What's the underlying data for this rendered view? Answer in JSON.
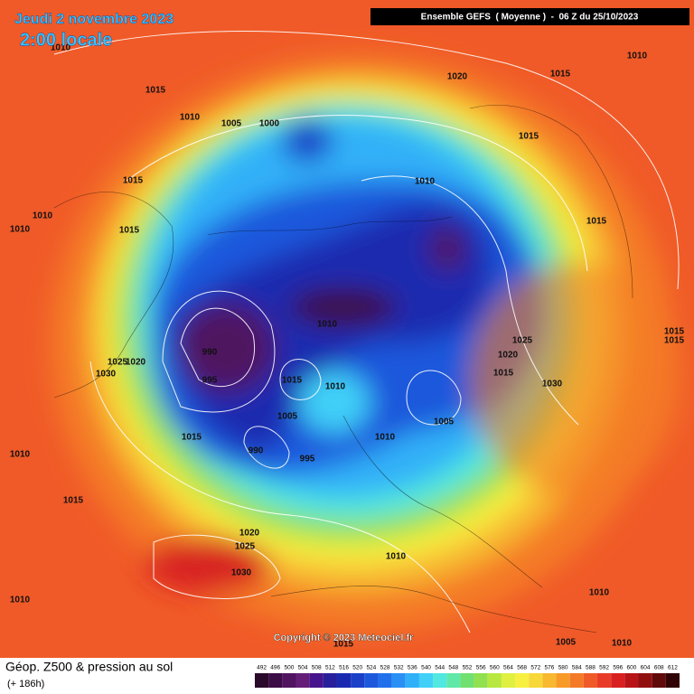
{
  "header": {
    "date": "Jeudi 2 novembre 2023",
    "time": "2:00 locale",
    "model": "Ensemble GEFS  ( Moyenne )  -  06 Z du 25/10/2023"
  },
  "footer": {
    "title": "Géop. Z500 & pression au sol",
    "lead": "(+ 186h)",
    "copyright": "Copyright © 2023 Meteociel.fr"
  },
  "isobar_labels": [
    1010,
    1015,
    1010,
    1005,
    1000,
    1020,
    1015,
    1010,
    1015,
    1015,
    1010,
    1010,
    1010,
    1015,
    1015,
    1010,
    1025,
    990,
    1020,
    1015,
    1015,
    1025,
    1020,
    1030,
    1015,
    995,
    1015,
    1010,
    1030,
    1005,
    1005,
    1015,
    1010,
    990,
    995,
    1010,
    1015,
    1020,
    1025,
    1010,
    1030,
    1010,
    1010,
    1005,
    1010,
    1015
  ],
  "legend": {
    "labels": [
      492,
      496,
      500,
      504,
      508,
      512,
      516,
      520,
      524,
      528,
      532,
      536,
      540,
      544,
      548,
      552,
      556,
      560,
      564,
      568,
      572,
      576,
      580,
      584,
      588,
      592,
      596,
      600,
      604,
      608,
      612
    ],
    "colors": [
      "#2a0a2a",
      "#3c0c46",
      "#501460",
      "#641e78",
      "#46148c",
      "#28209a",
      "#1a2ab0",
      "#1a40c8",
      "#1c58dc",
      "#2070ec",
      "#2890f4",
      "#30b0f8",
      "#40d0f8",
      "#50e8e0",
      "#60e8a8",
      "#70e070",
      "#90e050",
      "#b8e840",
      "#e0f040",
      "#f8f040",
      "#f8d838",
      "#f8b830",
      "#f89a28",
      "#f47a28",
      "#f05a28",
      "#e83c28",
      "#d82020",
      "#b81418",
      "#901010",
      "#600a0a",
      "#300404"
    ]
  }
}
